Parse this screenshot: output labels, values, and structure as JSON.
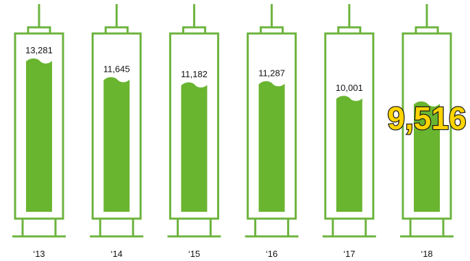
{
  "chart_data": {
    "type": "bar",
    "categories": [
      "‘13",
      "‘14",
      "‘15",
      "‘16",
      "‘17",
      "‘18"
    ],
    "values": [
      13281,
      11645,
      11182,
      11287,
      10001,
      9516
    ],
    "value_labels": [
      "13,281",
      "11,645",
      "11,182",
      "11,287",
      "10,001",
      "9,516"
    ],
    "highlight_index": 5,
    "highlight_label": "9,516",
    "colors": {
      "outline": "#6bb33c",
      "fill": "#6ab530",
      "highlight_text": "#ffd400",
      "highlight_stroke": "#1a1a1a"
    }
  }
}
